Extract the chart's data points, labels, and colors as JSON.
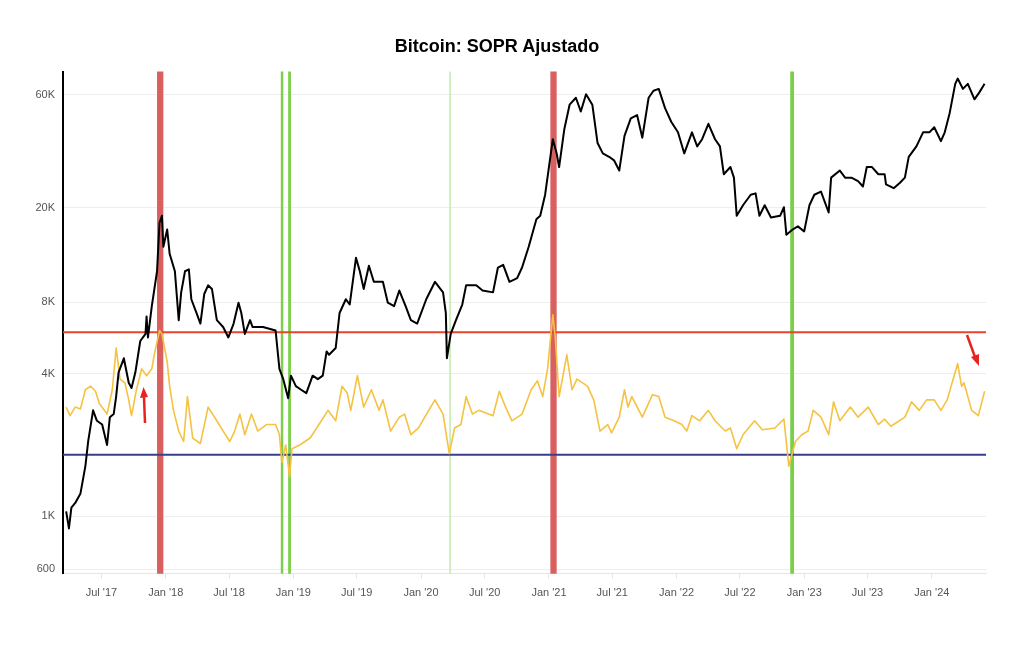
{
  "chart_data": {
    "type": "line",
    "title": "Bitcoin: SOPR Ajustado",
    "log": true,
    "grid": "y",
    "legend": false,
    "marker": "none",
    "xlim": [
      "2017-03-13",
      "2024-06-04"
    ],
    "xticks": [
      {
        "value": "2017-07",
        "label": "Jul '17"
      },
      {
        "value": "2018-01",
        "label": "Jan '18"
      },
      {
        "value": "2018-07",
        "label": "Jul '18"
      },
      {
        "value": "2019-01",
        "label": "Jan '19"
      },
      {
        "value": "2019-07",
        "label": "Jul '19"
      },
      {
        "value": "2020-01",
        "label": "Jan '20"
      },
      {
        "value": "2020-07",
        "label": "Jul '20"
      },
      {
        "value": "2021-01",
        "label": "Jan '21"
      },
      {
        "value": "2021-07",
        "label": "Jul '21"
      },
      {
        "value": "2022-01",
        "label": "Jan '22"
      },
      {
        "value": "2022-07",
        "label": "Jul '22"
      },
      {
        "value": "2023-01",
        "label": "Jan '23"
      },
      {
        "value": "2023-07",
        "label": "Jul '23"
      },
      {
        "value": "2024-01",
        "label": "Jan '24"
      }
    ],
    "ylim": [
      573,
      75000
    ],
    "yticks": [
      {
        "value": 600,
        "label": "600"
      },
      {
        "value": 1000,
        "label": "1K"
      },
      {
        "value": 4000,
        "label": "4K"
      },
      {
        "value": 8000,
        "label": "8K"
      },
      {
        "value": 20000,
        "label": "20K"
      },
      {
        "value": 60000,
        "label": "60K"
      }
    ],
    "series": [
      {
        "color": "#000000",
        "x": [
          "2017-03-22",
          "2017-03-30",
          "2017-04-06",
          "2017-04-17",
          "2017-05-02",
          "2017-05-16",
          "2017-05-24",
          "2017-06-07",
          "2017-06-18",
          "2017-07-03",
          "2017-07-17",
          "2017-07-25",
          "2017-08-05",
          "2017-08-12",
          "2017-08-19",
          "2017-09-03",
          "2017-09-17",
          "2017-09-25",
          "2017-10-06",
          "2017-10-20",
          "2017-11-04",
          "2017-11-07",
          "2017-11-11",
          "2017-11-22",
          "2017-12-07",
          "2017-12-14",
          "2017-12-21",
          "2017-12-25",
          "2018-01-05",
          "2018-01-12",
          "2018-01-27",
          "2018-02-07",
          "2018-02-14",
          "2018-02-25",
          "2018-03-08",
          "2018-03-15",
          "2018-03-30",
          "2018-04-10",
          "2018-04-21",
          "2018-05-02",
          "2018-05-13",
          "2018-05-27",
          "2018-06-14",
          "2018-06-29",
          "2018-07-14",
          "2018-07-28",
          "2018-08-05",
          "2018-08-15",
          "2018-08-30",
          "2018-09-06",
          "2018-10-06",
          "2018-10-24",
          "2018-11-11",
          "2018-11-22",
          "2018-12-03",
          "2018-12-17",
          "2018-12-25",
          "2019-01-08",
          "2019-01-23",
          "2019-02-07",
          "2019-02-25",
          "2019-03-12",
          "2019-03-26",
          "2019-04-06",
          "2019-04-13",
          "2019-05-02",
          "2019-05-13",
          "2019-05-31",
          "2019-06-11",
          "2019-06-29",
          "2019-07-10",
          "2019-07-21",
          "2019-08-05",
          "2019-08-19",
          "2019-09-14",
          "2019-09-28",
          "2019-10-16",
          "2019-10-31",
          "2019-11-18",
          "2019-12-03",
          "2019-12-21",
          "2020-01-16",
          "2020-02-10",
          "2020-03-04",
          "2020-03-12",
          "2020-03-15",
          "2020-03-26",
          "2020-04-10",
          "2020-04-28",
          "2020-05-09",
          "2020-06-07",
          "2020-06-25",
          "2020-07-25",
          "2020-08-08",
          "2020-08-23",
          "2020-09-10",
          "2020-10-02",
          "2020-10-16",
          "2020-11-04",
          "2020-11-26",
          "2020-12-07",
          "2020-12-21",
          "2021-01-12",
          "2021-01-23",
          "2021-01-30",
          "2021-02-14",
          "2021-03-01",
          "2021-03-19",
          "2021-04-02",
          "2021-04-17",
          "2021-05-05",
          "2021-05-20",
          "2021-06-04",
          "2021-06-22",
          "2021-07-06",
          "2021-07-21",
          "2021-08-05",
          "2021-08-23",
          "2021-09-10",
          "2021-09-25",
          "2021-10-13",
          "2021-10-27",
          "2021-11-11",
          "2021-11-29",
          "2021-12-17",
          "2022-01-05",
          "2022-01-23",
          "2022-02-14",
          "2022-03-01",
          "2022-03-15",
          "2022-04-02",
          "2022-04-21",
          "2022-05-05",
          "2022-05-16",
          "2022-06-04",
          "2022-06-14",
          "2022-06-22",
          "2022-07-10",
          "2022-08-01",
          "2022-08-15",
          "2022-08-26",
          "2022-09-10",
          "2022-09-28",
          "2022-10-24",
          "2022-11-04",
          "2022-11-11",
          "2022-11-29",
          "2022-12-14",
          "2023-01-01",
          "2023-01-16",
          "2023-01-30",
          "2023-02-18",
          "2023-03-12",
          "2023-03-19",
          "2023-04-13",
          "2023-04-28",
          "2023-05-16",
          "2023-06-04",
          "2023-06-18",
          "2023-06-29",
          "2023-07-14",
          "2023-08-01",
          "2023-08-19",
          "2023-08-23",
          "2023-09-14",
          "2023-10-02",
          "2023-10-16",
          "2023-10-27",
          "2023-11-18",
          "2023-12-07",
          "2023-12-25",
          "2024-01-08",
          "2024-01-27",
          "2024-02-07",
          "2024-02-21",
          "2024-03-08",
          "2024-03-15",
          "2024-03-30",
          "2024-04-13",
          "2024-05-02",
          "2024-05-16",
          "2024-05-31"
        ],
        "values": [
          1050,
          890,
          1090,
          1140,
          1250,
          1630,
          2070,
          2800,
          2530,
          2440,
          2000,
          2620,
          2700,
          3200,
          4050,
          4640,
          3660,
          3480,
          4050,
          5490,
          5880,
          6960,
          5680,
          7700,
          10800,
          17300,
          18500,
          13700,
          16200,
          12800,
          10800,
          6720,
          8800,
          10800,
          11000,
          8230,
          7200,
          6500,
          8660,
          9420,
          9100,
          6720,
          6290,
          5680,
          6500,
          7960,
          7200,
          5880,
          6720,
          6290,
          6290,
          6180,
          6080,
          4190,
          3790,
          3150,
          3920,
          3540,
          3420,
          3310,
          3920,
          3790,
          3920,
          4960,
          4800,
          5130,
          7200,
          8230,
          7820,
          12300,
          10800,
          9100,
          11400,
          9750,
          9750,
          7960,
          7700,
          8960,
          7700,
          6720,
          6500,
          8230,
          9750,
          8800,
          7200,
          4640,
          5880,
          6720,
          7820,
          9420,
          9420,
          8960,
          8800,
          11200,
          11500,
          9750,
          10100,
          11200,
          13700,
          17900,
          18500,
          22700,
          38900,
          33900,
          29700,
          43000,
          54400,
          58200,
          50900,
          60200,
          54400,
          37500,
          33900,
          32800,
          31700,
          28700,
          40200,
          47600,
          49200,
          39500,
          58200,
          62300,
          63400,
          52600,
          46000,
          41600,
          33900,
          41600,
          36300,
          38900,
          45200,
          38900,
          36300,
          27700,
          29700,
          26800,
          18500,
          20500,
          22700,
          23000,
          18500,
          20500,
          18200,
          18500,
          20100,
          15400,
          16200,
          16700,
          15900,
          20500,
          22700,
          23400,
          19100,
          26800,
          28700,
          26800,
          26800,
          25900,
          24600,
          29700,
          29700,
          27700,
          27700,
          25100,
          24200,
          25500,
          26800,
          32800,
          36300,
          41600,
          41600,
          43700,
          38200,
          41600,
          50100,
          66600,
          70100,
          63400,
          66600,
          57300,
          61300,
          66600
        ]
      },
      {
        "color": "#f5c242",
        "x": [
          "2017-03-22",
          "2017-04-02",
          "2017-04-17",
          "2017-05-02",
          "2017-05-16",
          "2017-05-31",
          "2017-06-14",
          "2017-06-25",
          "2017-07-17",
          "2017-08-01",
          "2017-08-12",
          "2017-08-23",
          "2017-09-06",
          "2017-09-17",
          "2017-09-25",
          "2017-10-09",
          "2017-10-24",
          "2017-11-07",
          "2017-11-22",
          "2017-11-29",
          "2017-12-14",
          "2017-12-21",
          "2018-01-05",
          "2018-01-12",
          "2018-01-23",
          "2018-02-07",
          "2018-02-21",
          "2018-03-04",
          "2018-03-19",
          "2018-04-10",
          "2018-05-02",
          "2018-05-27",
          "2018-06-14",
          "2018-07-03",
          "2018-07-17",
          "2018-08-01",
          "2018-08-15",
          "2018-09-03",
          "2018-09-21",
          "2018-10-16",
          "2018-11-11",
          "2018-11-22",
          "2018-11-29",
          "2018-12-10",
          "2018-12-21",
          "2018-12-28",
          "2019-01-19",
          "2019-02-18",
          "2019-03-15",
          "2019-04-10",
          "2019-05-02",
          "2019-05-20",
          "2019-06-04",
          "2019-06-14",
          "2019-07-03",
          "2019-07-21",
          "2019-08-12",
          "2019-09-03",
          "2019-09-14",
          "2019-10-06",
          "2019-10-31",
          "2019-11-15",
          "2019-12-03",
          "2019-12-25",
          "2020-01-23",
          "2020-02-10",
          "2020-03-04",
          "2020-03-22",
          "2020-04-06",
          "2020-04-24",
          "2020-05-09",
          "2020-05-27",
          "2020-06-14",
          "2020-07-25",
          "2020-08-12",
          "2020-08-30",
          "2020-09-17",
          "2020-10-16",
          "2020-11-11",
          "2020-11-29",
          "2020-12-14",
          "2020-12-28",
          "2021-01-12",
          "2021-01-19",
          "2021-01-30",
          "2021-02-21",
          "2021-03-08",
          "2021-03-22",
          "2021-04-21",
          "2021-05-09",
          "2021-05-27",
          "2021-06-18",
          "2021-06-29",
          "2021-07-21",
          "2021-08-05",
          "2021-08-15",
          "2021-08-26",
          "2021-09-25",
          "2021-10-24",
          "2021-11-11",
          "2021-11-29",
          "2021-12-25",
          "2022-01-16",
          "2022-01-30",
          "2022-02-14",
          "2022-03-08",
          "2022-04-02",
          "2022-04-21",
          "2022-05-20",
          "2022-06-04",
          "2022-06-22",
          "2022-07-10",
          "2022-08-12",
          "2022-09-03",
          "2022-10-09",
          "2022-11-04",
          "2022-11-18",
          "2022-12-07",
          "2022-12-25",
          "2023-01-12",
          "2023-01-27",
          "2023-02-18",
          "2023-03-12",
          "2023-03-26",
          "2023-04-13",
          "2023-05-13",
          "2023-06-04",
          "2023-07-03",
          "2023-08-01",
          "2023-08-19",
          "2023-09-06",
          "2023-10-16",
          "2023-11-04",
          "2023-11-26",
          "2023-12-17",
          "2024-01-08",
          "2024-01-27",
          "2024-02-14",
          "2024-03-15",
          "2024-03-26",
          "2024-04-02",
          "2024-04-24",
          "2024-05-13",
          "2024-05-31"
        ],
        "values": [
          2890,
          2660,
          2890,
          2840,
          3420,
          3540,
          3370,
          2990,
          2700,
          3420,
          5130,
          3790,
          3660,
          3100,
          2660,
          3420,
          4190,
          3920,
          4190,
          4800,
          6080,
          5880,
          4480,
          3540,
          2800,
          2290,
          2070,
          3200,
          2140,
          2030,
          2890,
          2530,
          2290,
          2070,
          2290,
          2700,
          2210,
          2700,
          2290,
          2440,
          2440,
          2210,
          1690,
          2000,
          1470,
          1930,
          2000,
          2140,
          2440,
          2800,
          2530,
          3540,
          3310,
          2800,
          3920,
          2890,
          3420,
          2800,
          3100,
          2290,
          2620,
          2700,
          2210,
          2360,
          2800,
          3100,
          2700,
          1840,
          2360,
          2440,
          3200,
          2700,
          2800,
          2660,
          3370,
          2890,
          2530,
          2700,
          3420,
          3730,
          3200,
          4190,
          7070,
          5680,
          3200,
          4800,
          3420,
          3790,
          3540,
          3100,
          2290,
          2440,
          2250,
          2620,
          3420,
          2890,
          3200,
          2620,
          3260,
          3200,
          2620,
          2530,
          2440,
          2290,
          2660,
          2530,
          2800,
          2530,
          2290,
          2360,
          1930,
          2210,
          2530,
          2320,
          2360,
          2570,
          1630,
          2070,
          2210,
          2290,
          2800,
          2620,
          2210,
          3040,
          2530,
          2890,
          2620,
          2890,
          2440,
          2570,
          2400,
          2620,
          3040,
          2800,
          3100,
          3100,
          2800,
          3100,
          4410,
          3540,
          3660,
          2800,
          2660,
          3370
        ]
      }
    ],
    "ref_lines": [
      {
        "axis": "y",
        "value": 5980,
        "color": "#e8432e"
      },
      {
        "axis": "y",
        "value": 1820,
        "color": "#3a3d8c"
      }
    ],
    "bands": [
      {
        "axis": "x",
        "from": "2017-12-07",
        "to": "2017-12-25",
        "color": "#d9605e"
      },
      {
        "axis": "x",
        "from": "2018-11-26",
        "to": "2018-12-03",
        "color": "#7ccf4a"
      },
      {
        "axis": "x",
        "from": "2018-12-17",
        "to": "2018-12-25",
        "color": "#7ccf4a"
      },
      {
        "axis": "x",
        "from": "2020-03-22",
        "to": "2020-03-26",
        "color": "#c6e8ae"
      },
      {
        "axis": "x",
        "from": "2021-01-05",
        "to": "2021-01-23",
        "color": "#d9605e"
      },
      {
        "axis": "x",
        "from": "2022-11-22",
        "to": "2022-12-03",
        "color": "#7ccf4a"
      }
    ]
  }
}
